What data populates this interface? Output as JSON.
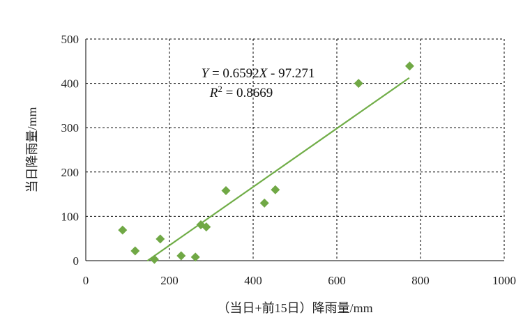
{
  "chart_data": {
    "type": "scatter",
    "xlabel": "（当日+前15日）降雨量/mm",
    "ylabel": "当日降雨量/mm",
    "xlim": [
      0,
      1000
    ],
    "ylim": [
      0,
      500
    ],
    "xticks": [
      0,
      200,
      400,
      600,
      800,
      1000
    ],
    "yticks": [
      0,
      100,
      200,
      300,
      400,
      500
    ],
    "grid": "dashed",
    "marker": "diamond",
    "colors": {
      "points": "#70a845",
      "trendline": "#70ad47",
      "grid": "#000000",
      "axis": "#000000"
    },
    "points": [
      {
        "x": 88,
        "y": 69
      },
      {
        "x": 118,
        "y": 22
      },
      {
        "x": 164,
        "y": 3
      },
      {
        "x": 178,
        "y": 49
      },
      {
        "x": 228,
        "y": 11
      },
      {
        "x": 262,
        "y": 8
      },
      {
        "x": 275,
        "y": 81
      },
      {
        "x": 288,
        "y": 76
      },
      {
        "x": 335,
        "y": 158
      },
      {
        "x": 427,
        "y": 130
      },
      {
        "x": 453,
        "y": 160
      },
      {
        "x": 652,
        "y": 400
      },
      {
        "x": 774,
        "y": 439
      }
    ],
    "trendline": {
      "equation": "Y = 0.6592X - 97.271",
      "r2": "R2 = 0.8669",
      "slope": 0.6592,
      "intercept": -97.271,
      "x_range": [
        147,
        773
      ]
    }
  }
}
